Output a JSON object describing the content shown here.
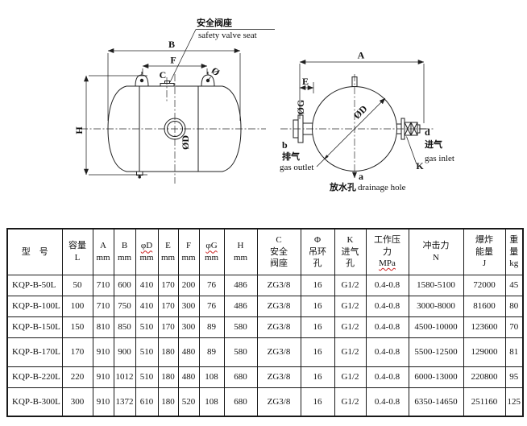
{
  "diagram": {
    "side_view": {
      "callout_zh": "安全阀座",
      "callout_en": "safety valve seat",
      "dims": {
        "B": "B",
        "F": "F",
        "C": "C",
        "phi": "Ø",
        "H": "H",
        "OD": "ØD"
      }
    },
    "end_view": {
      "dims": {
        "A": "A",
        "E": "E",
        "OG": "ØG",
        "OD": "ØD",
        "K": "K"
      },
      "outlet": {
        "letter": "b",
        "zh": "排气",
        "en": "gas outlet"
      },
      "inlet": {
        "letter": "d",
        "zh": "进气",
        "en": "gas  inlet"
      },
      "drain": {
        "letter": "a",
        "zh": "放水孔",
        "en": "drainage hole"
      }
    }
  },
  "table": {
    "columns": [
      {
        "lines": [
          "型　号"
        ]
      },
      {
        "lines": [
          "容量",
          "L"
        ]
      },
      {
        "lines": [
          "A",
          "mm"
        ]
      },
      {
        "lines": [
          "B",
          "mm"
        ]
      },
      {
        "lines": [
          "φD",
          "mm"
        ],
        "wavy_line": 0
      },
      {
        "lines": [
          "E",
          "mm"
        ]
      },
      {
        "lines": [
          "F",
          "mm"
        ]
      },
      {
        "lines": [
          "φG",
          "mm"
        ],
        "wavy_line": 0
      },
      {
        "lines": [
          "H",
          "mm"
        ]
      },
      {
        "lines": [
          "C",
          "安全",
          "阀座"
        ]
      },
      {
        "lines": [
          "Φ",
          "吊环",
          "孔"
        ]
      },
      {
        "lines": [
          "K",
          "进气",
          "孔"
        ]
      },
      {
        "lines": [
          "工作压",
          "力",
          "MPa"
        ],
        "wavy_line": 2
      },
      {
        "lines": [
          "冲击力",
          "N"
        ]
      },
      {
        "lines": [
          "爆炸",
          "能量",
          "J"
        ]
      },
      {
        "lines": [
          "重",
          "量",
          "kg"
        ]
      }
    ],
    "rows": [
      [
        "KQP-B-50L",
        "50",
        "710",
        "600",
        "410",
        "170",
        "200",
        "76",
        "486",
        "ZG3/8",
        "16",
        "G1/2",
        "0.4-0.8",
        "1580-5100",
        "72000",
        "45"
      ],
      [
        "KQP-B-100L",
        "100",
        "710",
        "750",
        "410",
        "170",
        "300",
        "76",
        "486",
        "ZG3/8",
        "16",
        "G1/2",
        "0.4-0.8",
        "3000-8000",
        "81600",
        "80"
      ],
      [
        "KQP-B-150L",
        "150",
        "810",
        "850",
        "510",
        "170",
        "300",
        "89",
        "580",
        "ZG3/8",
        "16",
        "G1/2",
        "0.4-0.8",
        "4500-10000",
        "123600",
        "70"
      ],
      [
        "KQP-B-170L",
        "170",
        "910",
        "900",
        "510",
        "180",
        "480",
        "89",
        "580",
        "ZG3/8",
        "16",
        "G1/2",
        "0.4-0.8",
        "5500-12500",
        "129000",
        "81"
      ],
      [
        "KQP-B-220L",
        "220",
        "910",
        "1012",
        "510",
        "180",
        "480",
        "108",
        "680",
        "ZG3/8",
        "16",
        "G1/2",
        "0.4-0.8",
        "6000-13000",
        "220800",
        "95"
      ],
      [
        "KQP-B-300L",
        "300",
        "910",
        "1372",
        "610",
        "180",
        "520",
        "108",
        "680",
        "ZG3/8",
        "16",
        "G1/2",
        "0.4-0.8",
        "6350-14650",
        "251160",
        "125"
      ]
    ]
  },
  "colors": {
    "line": "#1f1f1f",
    "spellcheck_underline": "#cc2222"
  }
}
